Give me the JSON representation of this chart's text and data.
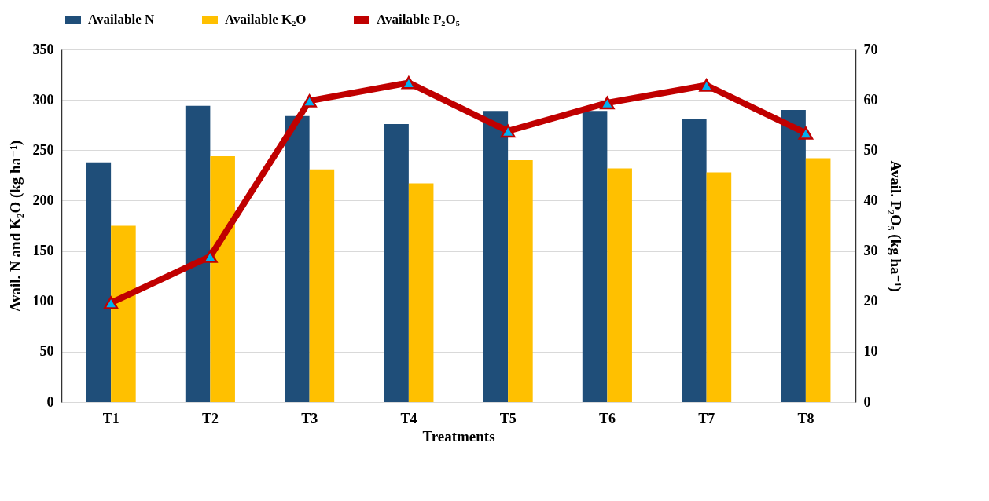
{
  "chart_data": {
    "type": "bar",
    "xlabel": "Treatments",
    "ylabel": "Avail. N and K₂O (kg ha⁻¹)",
    "y2label": "Avail. P₂O₅ (kg ha⁻¹)",
    "categories": [
      "T1",
      "T2",
      "T3",
      "T4",
      "T5",
      "T6",
      "T7",
      "T8"
    ],
    "series": [
      {
        "name": "Available N",
        "color": "#1f4e79",
        "values": [
          238,
          294,
          284,
          276,
          289,
          289,
          281,
          290
        ]
      },
      {
        "name": "Available K₂O",
        "color": "#ffc000",
        "values": [
          175,
          244,
          231,
          217,
          240,
          232,
          228,
          242
        ]
      },
      {
        "name": "Available P₂O₅",
        "type": "line",
        "axis": "y2",
        "color": "#c00000",
        "values": [
          19.7,
          28.9,
          59.8,
          63.4,
          53.8,
          59.4,
          62.9,
          53.4
        ]
      }
    ],
    "ylim": [
      0,
      350
    ],
    "yticks": [
      0,
      50,
      100,
      150,
      200,
      250,
      300,
      350
    ],
    "y2lim": [
      0,
      70
    ],
    "y2ticks": [
      0,
      10,
      20,
      30,
      40,
      50,
      60,
      70
    ],
    "grid": "y",
    "legend": "top",
    "marker": "triangle"
  }
}
